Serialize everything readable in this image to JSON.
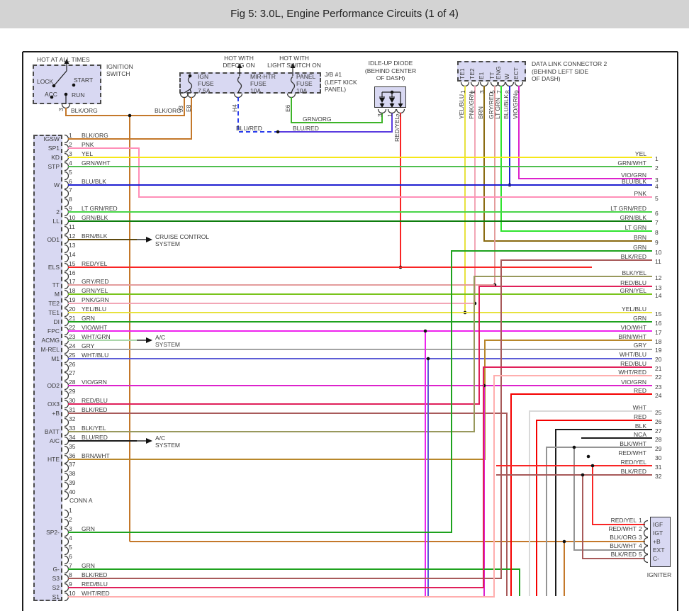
{
  "title": "Fig 5: 3.0L, Engine Performance Circuits (1 of 4)",
  "colors": {
    "BLK/ORG": "#c4782a",
    "PNK": "#ff8fb8",
    "YEL": "#f6e718",
    "GRN/WHT": "#4fbf4f",
    "BLU/BLK": "#1f1fd1",
    "LT GRN/RED": "#49d549",
    "GRN/BLK": "#0e7d0e",
    "BRN/BLK": "#5f4a0e",
    "RED/YEL": "#f92525",
    "GRY/RED": "#e39c9c",
    "GRN/YEL": "#79c41c",
    "PNK/GRN": "#f2a6b6",
    "YEL/BLU": "#e7e23e",
    "GRN": "#1ea21e",
    "VIO/WHT": "#ee22ee",
    "WHT/GRN": "#aad6aa",
    "GRY": "#a3a3a3",
    "WHT/BLU": "#5c5cd6",
    "VIO/GRN": "#dd22cc",
    "RED/BLU": "#e0205a",
    "BLK/RED": "#a85a5a",
    "BLK/YEL": "#98985c",
    "BLU/RED": "#5a3ce0",
    "BLU/RED-DASH": "#2a3cec",
    "BRN/WHT": "#b8872b",
    "WHT/RED": "#ffaeae",
    "WHT": "#d9d9d9",
    "RED": "#f40000",
    "BLK": "#1c1c1c",
    "NCA": "#1c1c1c",
    "BLK/WHT": "#949494",
    "GRN/ORG": "#3db428",
    "LT GRN": "#2fe42f",
    "BRN": "#8a6b12",
    "BLACK": "#1c1c1c"
  },
  "ignition_switch": {
    "hot_label": "HOT AT ALL TIMES",
    "name": [
      "IGNITION",
      "SWITCH"
    ],
    "positions": {
      "lock": "LOCK",
      "start": "START",
      "acc": "ACC",
      "run": "RUN"
    },
    "pin": "3",
    "wire_label_a": "BLK/ORG",
    "wire_label_b": "BLK/ORG"
  },
  "junction_block": {
    "name": [
      "J/B #1",
      "(LEFT KICK",
      "PANEL)"
    ],
    "feed_defog": [
      "HOT WITH",
      "DEFOG ON"
    ],
    "feed_light": [
      "HOT WITH",
      "LIGHT SWITCH ON"
    ],
    "fuses": [
      [
        "IGN",
        "FUSE",
        "7.5A"
      ],
      [
        "MIR-HTR",
        "FUSE",
        "10A"
      ],
      [
        "PANEL",
        "FUSE",
        "10A"
      ]
    ],
    "pins": [
      "J3",
      "E8",
      "H4",
      "E6"
    ],
    "wire_blu_red_a": "BLU/RED",
    "wire_blu_red_b": "BLU/RED",
    "wire_grn_org": "GRN/ORG"
  },
  "idle_up_diode": {
    "name": [
      "IDLE-UP DIODE",
      "(BEHIND CENTER",
      "OF DASH)"
    ],
    "pins": [
      "3",
      "1",
      "2"
    ],
    "output_wire": "RED/YEL"
  },
  "data_link": {
    "name": [
      "DATA LINK CONNECTOR 2",
      "(BEHIND LEFT SIDE",
      "OF DASH)"
    ],
    "pins": [
      {
        "signal": "TE1",
        "num": "1",
        "wire": "YEL/BLU"
      },
      {
        "signal": "TE2",
        "num": "2",
        "wire": "PNK/GRN"
      },
      {
        "signal": "E1",
        "num": "3",
        "wire": "BRN"
      },
      {
        "signal": "TT",
        "num": "5",
        "wire": "GRY/RED"
      },
      {
        "signal": "ENG",
        "num": "7",
        "wire": "LT GRN"
      },
      {
        "signal": "W",
        "num": "8",
        "wire": "BLU/BLK"
      },
      {
        "signal": "ECT",
        "num": "9",
        "wire": "VIO/GRN"
      }
    ]
  },
  "ecm": {
    "conn_a_label": "CONN A",
    "rows": [
      {
        "pin": "1",
        "wire": "BLK/ORG",
        "signal": "IGSW"
      },
      {
        "pin": "2",
        "wire": "PNK",
        "signal": "SP1"
      },
      {
        "pin": "3",
        "wire": "YEL",
        "signal": "KD"
      },
      {
        "pin": "4",
        "wire": "GRN/WHT",
        "signal": "STP"
      },
      {
        "pin": "5",
        "wire": null,
        "signal": null
      },
      {
        "pin": "6",
        "wire": "BLU/BLK",
        "signal": "W"
      },
      {
        "pin": "7",
        "wire": null,
        "signal": null
      },
      {
        "pin": "8",
        "wire": null,
        "signal": null
      },
      {
        "pin": "9",
        "wire": "LT GRN/RED",
        "signal": "2"
      },
      {
        "pin": "10",
        "wire": "GRN/BLK",
        "signal": "LL"
      },
      {
        "pin": "11",
        "wire": null,
        "signal": null
      },
      {
        "pin": "12",
        "wire": "BRN/BLK",
        "signal": "OD1"
      },
      {
        "pin": "13",
        "wire": null,
        "signal": null
      },
      {
        "pin": "14",
        "wire": null,
        "signal": null
      },
      {
        "pin": "15",
        "wire": "RED/YEL",
        "signal": "ELS"
      },
      {
        "pin": "16",
        "wire": null,
        "signal": null
      },
      {
        "pin": "17",
        "wire": "GRY/RED",
        "signal": "TT"
      },
      {
        "pin": "18",
        "wire": "GRN/YEL",
        "signal": "M"
      },
      {
        "pin": "19",
        "wire": "PNK/GRN",
        "signal": "TE2"
      },
      {
        "pin": "20",
        "wire": "YEL/BLU",
        "signal": "TE1"
      },
      {
        "pin": "21",
        "wire": "GRN",
        "signal": "DI"
      },
      {
        "pin": "22",
        "wire": "VIO/WHT",
        "signal": "FPC"
      },
      {
        "pin": "23",
        "wire": "WHT/GRN",
        "signal": "ACMG"
      },
      {
        "pin": "24",
        "wire": "GRY",
        "signal": "M-REL"
      },
      {
        "pin": "25",
        "wire": "WHT/BLU",
        "signal": "M1"
      },
      {
        "pin": "26",
        "wire": null,
        "signal": null
      },
      {
        "pin": "27",
        "wire": null,
        "signal": null
      },
      {
        "pin": "28",
        "wire": "VIO/GRN",
        "signal": "OD2"
      },
      {
        "pin": "29",
        "wire": null,
        "signal": null
      },
      {
        "pin": "30",
        "wire": "RED/BLU",
        "signal": "OX3"
      },
      {
        "pin": "31",
        "wire": "BLK/RED",
        "signal": "+B"
      },
      {
        "pin": "32",
        "wire": null,
        "signal": null
      },
      {
        "pin": "33",
        "wire": "BLK/YEL",
        "signal": "BATT"
      },
      {
        "pin": "34",
        "wire": "BLU/RED",
        "signal": "A/C"
      },
      {
        "pin": "35",
        "wire": null,
        "signal": null
      },
      {
        "pin": "36",
        "wire": "BRN/WHT",
        "signal": "HTE"
      },
      {
        "pin": "37",
        "wire": null,
        "signal": null
      },
      {
        "pin": "38",
        "wire": null,
        "signal": null
      },
      {
        "pin": "39",
        "wire": null,
        "signal": null
      },
      {
        "pin": "40",
        "wire": null,
        "signal": null
      }
    ],
    "rows2": [
      {
        "pin": "1",
        "wire": null,
        "signal": null
      },
      {
        "pin": "2",
        "wire": null,
        "signal": null
      },
      {
        "pin": "3",
        "wire": "GRN",
        "signal": "SP2-"
      },
      {
        "pin": "4",
        "wire": null,
        "signal": null
      },
      {
        "pin": "5",
        "wire": null,
        "signal": null
      },
      {
        "pin": "6",
        "wire": null,
        "signal": null
      },
      {
        "pin": "7",
        "wire": "GRN",
        "signal": "G-"
      },
      {
        "pin": "8",
        "wire": "BLK/RED",
        "signal": "S3"
      },
      {
        "pin": "9",
        "wire": "RED/BLU",
        "signal": "S2"
      },
      {
        "pin": "10",
        "wire": "WHT/RED",
        "signal": "S1"
      }
    ]
  },
  "branches": [
    {
      "row": 12,
      "lines": [
        "CRUISE CONTROL",
        "SYSTEM"
      ]
    },
    {
      "row": 23,
      "lines": [
        "A/C",
        "SYSTEM"
      ]
    },
    {
      "row": 34,
      "lines": [
        "A/C",
        "SYSTEM"
      ]
    }
  ],
  "right_pins": [
    {
      "num": "1",
      "wire": "YEL"
    },
    {
      "num": "2",
      "wire": "GRN/WHT"
    },
    {
      "num": "3",
      "wire": "VIO/GRN"
    },
    {
      "num": "4",
      "wire": "BLU/BLK"
    },
    {
      "num": "5",
      "wire": "PNK"
    },
    {
      "num": "6",
      "wire": "LT GRN/RED"
    },
    {
      "num": "7",
      "wire": "GRN/BLK"
    },
    {
      "num": "8",
      "wire": "LT GRN"
    },
    {
      "num": "9",
      "wire": "BRN"
    },
    {
      "num": "10",
      "wire": "GRN"
    },
    {
      "num": "11",
      "wire": "BLK/RED"
    },
    {
      "num": "12",
      "wire": "BLK/YEL"
    },
    {
      "num": "13",
      "wire": "RED/BLU"
    },
    {
      "num": "14",
      "wire": "GRN/YEL"
    },
    {
      "num": "15",
      "wire": "YEL/BLU"
    },
    {
      "num": "16",
      "wire": "GRN"
    },
    {
      "num": "17",
      "wire": "VIO/WHT"
    },
    {
      "num": "18",
      "wire": "BRN/WHT"
    },
    {
      "num": "19",
      "wire": "GRY"
    },
    {
      "num": "20",
      "wire": "WHT/BLU"
    },
    {
      "num": "21",
      "wire": "RED/BLU"
    },
    {
      "num": "22",
      "wire": "WHT/RED"
    },
    {
      "num": "23",
      "wire": "VIO/GRN"
    },
    {
      "num": "24",
      "wire": "RED"
    },
    {
      "num": "25",
      "wire": "WHT"
    },
    {
      "num": "26",
      "wire": "RED"
    },
    {
      "num": "27",
      "wire": "BLK"
    },
    {
      "num": "28",
      "wire": "NCA"
    },
    {
      "num": "29",
      "wire": "BLK/WHT"
    },
    {
      "num": "30",
      "wire": "RED/WHT"
    },
    {
      "num": "31",
      "wire": "RED/YEL"
    },
    {
      "num": "32",
      "wire": "BLK/RED"
    }
  ],
  "igniter": {
    "name": "IGNITER",
    "pins": [
      {
        "wire": "RED/YEL",
        "num": "1",
        "signal": "IGF"
      },
      {
        "wire": "RED/WHT",
        "num": "2",
        "signal": "IGT"
      },
      {
        "wire": "BLK/ORG",
        "num": "3",
        "signal": "+B"
      },
      {
        "wire": "BLK/WHT",
        "num": "4",
        "signal": "EXT"
      },
      {
        "wire": "BLK/RED",
        "num": "5",
        "signal": "C-"
      }
    ]
  }
}
